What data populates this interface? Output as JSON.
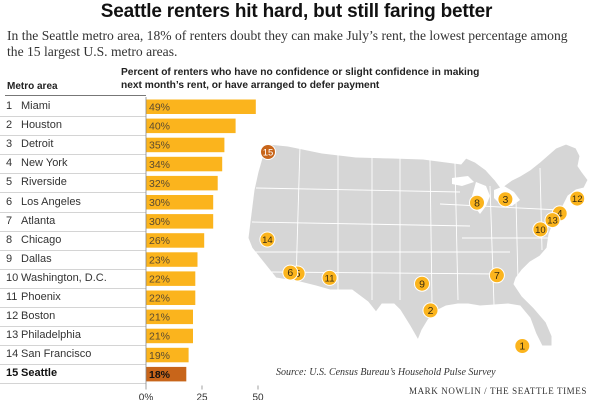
{
  "header": {
    "title": "Seattle renters hit hard, but still faring better",
    "subtitle": "In the Seattle metro area, 18% of renters doubt they can make July’s rent, the lowest percentage among the 15 largest U.S. metro areas."
  },
  "table": {
    "column_label": "Metro area"
  },
  "chart_data": {
    "type": "bar",
    "orientation": "horizontal",
    "title": "Percent of renters who have no confidence or slight confidence in making next month’s rent, or have arranged to defer payment",
    "categories": [
      "Miami",
      "Houston",
      "Detroit",
      "New York",
      "Riverside",
      "Los Angeles",
      "Atlanta",
      "Chicago",
      "Dallas",
      "Washington, D.C.",
      "Phoenix",
      "Boston",
      "Philadelphia",
      "San Francisco",
      "Seattle"
    ],
    "ranks": [
      "1",
      "2",
      "3",
      "4",
      "5",
      "6",
      "7",
      "8",
      "9",
      "10",
      "11",
      "12",
      "13",
      "14",
      "15"
    ],
    "values": [
      49,
      40,
      35,
      34,
      32,
      30,
      30,
      26,
      23,
      22,
      22,
      21,
      21,
      19,
      18
    ],
    "value_labels": [
      "49%",
      "40%",
      "35%",
      "34%",
      "32%",
      "30%",
      "30%",
      "26%",
      "23%",
      "22%",
      "22%",
      "21%",
      "21%",
      "19%",
      "18%"
    ],
    "highlight": "Seattle",
    "xlim": [
      0,
      50
    ],
    "xticks": [
      0,
      25,
      50
    ],
    "xtick_labels": [
      "0%",
      "25",
      "50"
    ],
    "grid": false,
    "colors": {
      "bar": "#fbb41d",
      "highlight": "#c8651a",
      "label_text": "#5a4a30"
    }
  },
  "map": {
    "markers": [
      {
        "label": "1",
        "lon": -80.2,
        "lat": 25.8
      },
      {
        "label": "2",
        "lon": -95.4,
        "lat": 29.8
      },
      {
        "label": "3",
        "lon": -83.0,
        "lat": 42.3
      },
      {
        "label": "4",
        "lon": -74.0,
        "lat": 40.7
      },
      {
        "label": "5",
        "lon": -117.4,
        "lat": 33.95
      },
      {
        "label": "6",
        "lon": -118.6,
        "lat": 34.05
      },
      {
        "label": "7",
        "lon": -84.4,
        "lat": 33.75
      },
      {
        "label": "8",
        "lon": -87.7,
        "lat": 41.9
      },
      {
        "label": "9",
        "lon": -96.8,
        "lat": 32.8
      },
      {
        "label": "10",
        "lon": -77.2,
        "lat": 38.9
      },
      {
        "label": "11",
        "lon": -112.1,
        "lat": 33.45
      },
      {
        "label": "12",
        "lon": -71.1,
        "lat": 42.36
      },
      {
        "label": "13",
        "lon": -75.2,
        "lat": 39.95
      },
      {
        "label": "14",
        "lon": -122.4,
        "lat": 37.77
      },
      {
        "label": "15",
        "lon": -122.3,
        "lat": 47.6
      }
    ],
    "highlight_marker": "15",
    "colors": {
      "land": "#d6d6d6",
      "border": "#ffffff",
      "marker": "#fbb41d",
      "marker_highlight": "#c8651a"
    }
  },
  "footer": {
    "source": "Source: U.S. Census Bureau’s Household Pulse Survey",
    "credit": "MARK NOWLIN / THE SEATTLE TIMES"
  }
}
